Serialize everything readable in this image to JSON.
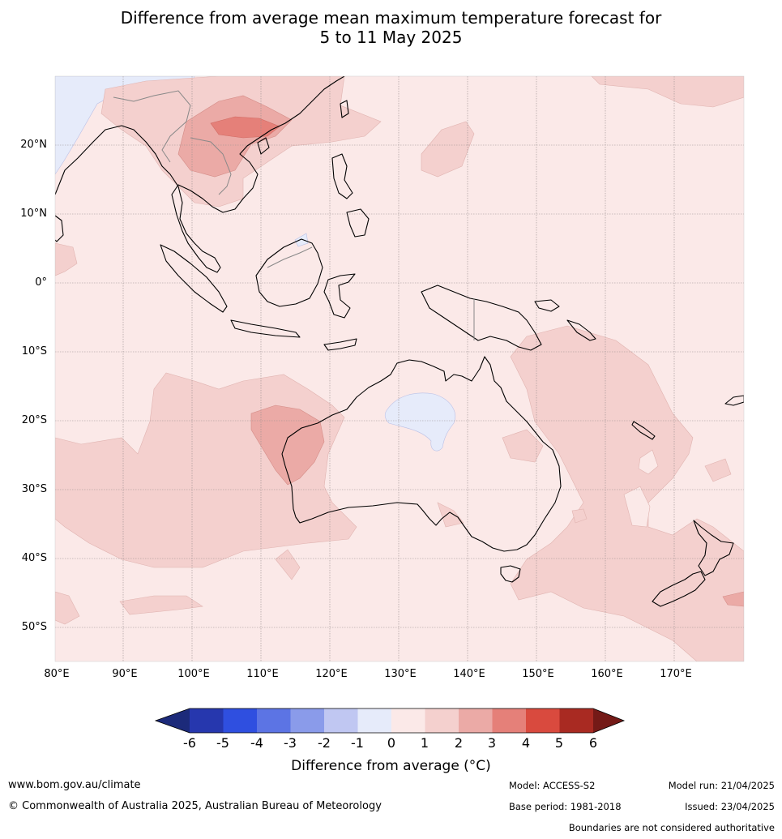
{
  "title": {
    "line1": "Difference from average mean maximum temperature forecast for",
    "line2": "5 to 11 May 2025"
  },
  "map": {
    "lat_labels": [
      "20°N",
      "10°N",
      "0°",
      "10°S",
      "20°S",
      "30°S",
      "40°S",
      "50°S"
    ],
    "lon_labels": [
      "80°E",
      "90°E",
      "100°E",
      "110°E",
      "120°E",
      "130°E",
      "140°E",
      "150°E",
      "160°E",
      "170°E"
    ],
    "extent": {
      "lon": [
        80,
        180
      ],
      "lat": [
        -55,
        30
      ]
    },
    "gridlines": true,
    "background_color": "#fbe9e8",
    "features": [
      "Australia coastline",
      "Indonesia",
      "Papua New Guinea",
      "New Zealand",
      "South-east Asia",
      "Philippines"
    ]
  },
  "colorbar": {
    "tick_labels": [
      "-6",
      "-5",
      "-4",
      "-3",
      "-2",
      "-1",
      "0",
      "1",
      "2",
      "3",
      "4",
      "5",
      "6"
    ],
    "label": "Difference from average (°C)",
    "colors": [
      "#1c2a7a",
      "#2637ae",
      "#2f4fe0",
      "#5c74e4",
      "#8a9bea",
      "#c0c7f2",
      "#e6ebfa",
      "#fbe9e8",
      "#f4d0ce",
      "#ebaaa6",
      "#e58079",
      "#d94a3e",
      "#a92a22",
      "#741a17"
    ]
  },
  "footer": {
    "website": "www.bom.gov.au/climate",
    "copyright": "© Commonwealth of Australia 2025, Australian Bureau of Meteorology",
    "model": "Model: ACCESS-S2",
    "base_period": "Base period: 1981-2018",
    "model_run": "Model run: 21/04/2025",
    "issued": "Issued: 23/04/2025",
    "disclaimer": "Boundaries are not considered authoritative"
  }
}
